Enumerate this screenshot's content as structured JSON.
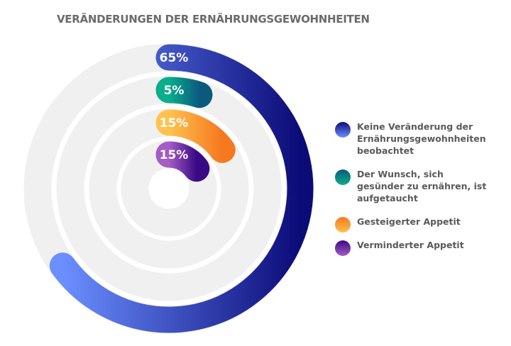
{
  "chart_data": {
    "type": "radial-bar",
    "title": "VERÄNDERUNGEN DER ERNÄHRUNGSGEWOHNHEITEN",
    "legend_position": "right",
    "series": [
      {
        "name": "Keine Veränderung der Ernährungsgewohnheiten beobachtet",
        "value": 65,
        "label": "65%",
        "colors": [
          "#6b8fff",
          "#0b0b78"
        ]
      },
      {
        "name": "Der Wunsch, sich gesünder zu ernähren, ist aufgetaucht",
        "value": 5,
        "label": "5%",
        "colors": [
          "#0aae8c",
          "#0b5a7e"
        ]
      },
      {
        "name": "Gesteigerter Appetit",
        "value": 15,
        "label": "15%",
        "colors": [
          "#ffc24f",
          "#f6781f"
        ]
      },
      {
        "name": "Verminderter Appetit",
        "value": 15,
        "label": "15%",
        "colors": [
          "#a55cc4",
          "#3a0a86"
        ]
      }
    ],
    "track_color": "#f0f0f0"
  }
}
